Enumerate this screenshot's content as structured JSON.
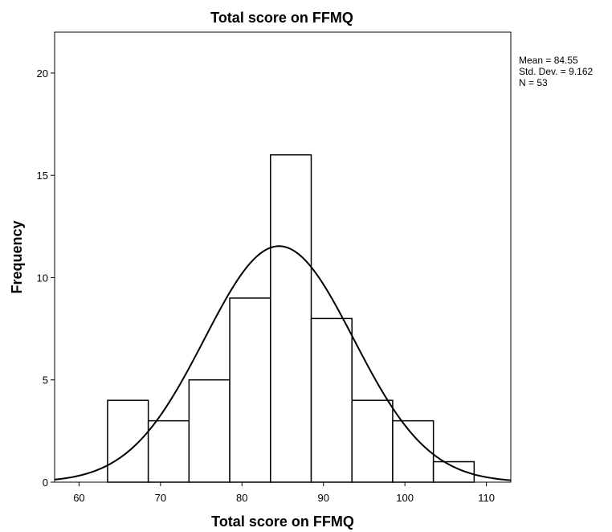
{
  "chart_data": {
    "type": "bar",
    "title": "Total score on FFMQ",
    "xlabel": "Total score on FFMQ",
    "ylabel": "Frequency",
    "xlim": [
      57,
      113
    ],
    "ylim": [
      0,
      22
    ],
    "x_ticks": [
      60,
      70,
      80,
      90,
      100,
      110
    ],
    "y_ticks": [
      0,
      5,
      10,
      15,
      20
    ],
    "bin_width": 5,
    "bins": [
      {
        "start": 63.5,
        "end": 68.5,
        "count": 4
      },
      {
        "start": 68.5,
        "end": 73.5,
        "count": 3
      },
      {
        "start": 73.5,
        "end": 78.5,
        "count": 5
      },
      {
        "start": 78.5,
        "end": 83.5,
        "count": 9
      },
      {
        "start": 83.5,
        "end": 88.5,
        "count": 16
      },
      {
        "start": 88.5,
        "end": 93.5,
        "count": 8
      },
      {
        "start": 93.5,
        "end": 98.5,
        "count": 4
      },
      {
        "start": 98.5,
        "end": 103.5,
        "count": 3
      },
      {
        "start": 103.5,
        "end": 108.5,
        "count": 1
      }
    ],
    "normal_curve": {
      "mean": 84.55,
      "std_dev": 9.162,
      "n": 53
    },
    "stats_text": [
      "Mean = 84.55",
      "Std. Dev. = 9.162",
      "N = 53"
    ],
    "grid": false
  }
}
